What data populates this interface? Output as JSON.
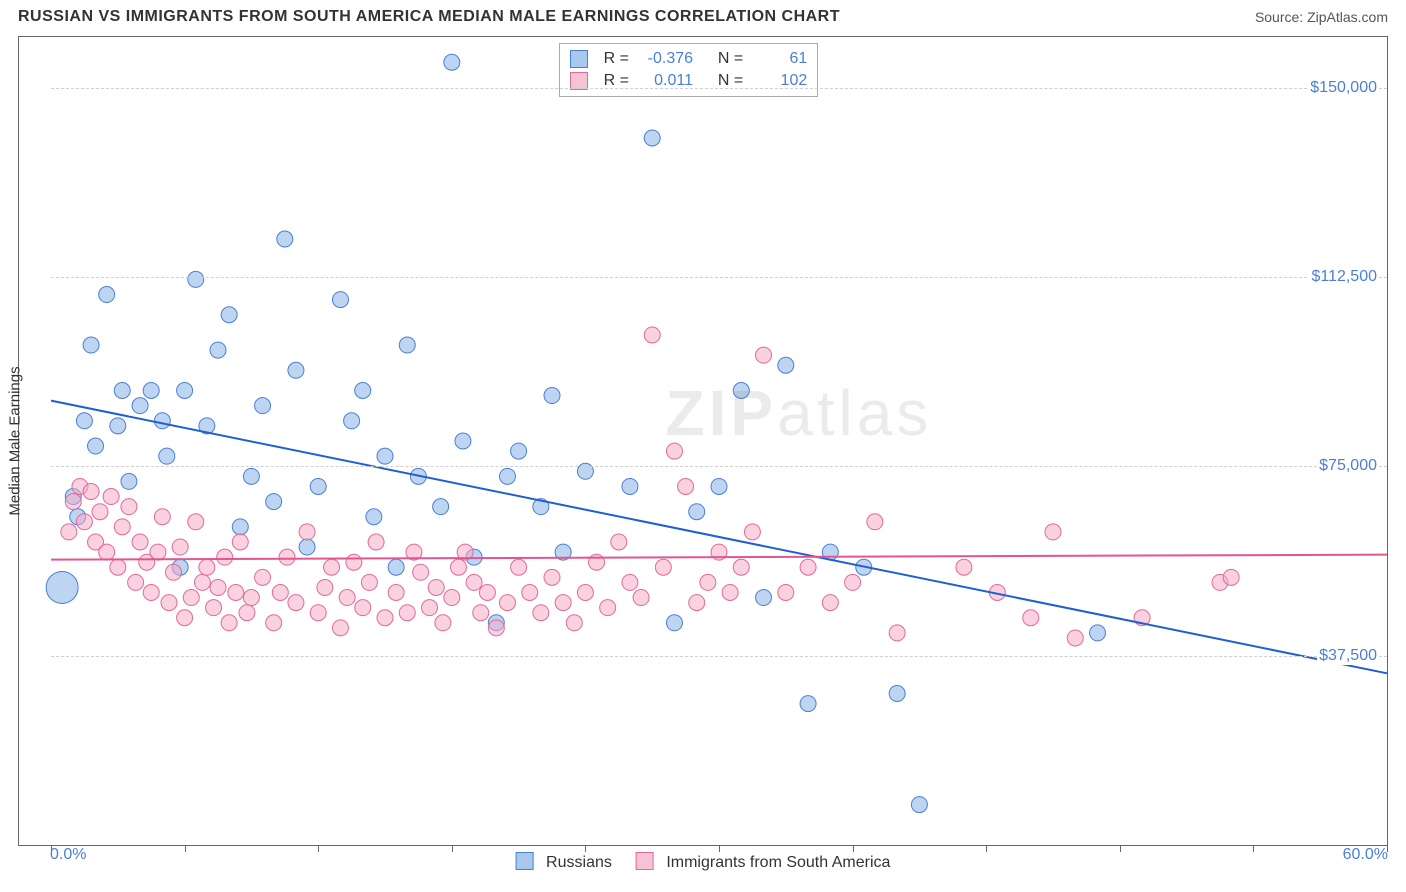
{
  "title": "RUSSIAN VS IMMIGRANTS FROM SOUTH AMERICA MEDIAN MALE EARNINGS CORRELATION CHART",
  "source": "Source: ZipAtlas.com",
  "ylabel": "Median Male Earnings",
  "watermark": {
    "bold": "ZIP",
    "rest": "atlas"
  },
  "chart": {
    "type": "scatter",
    "xlim": [
      0,
      60
    ],
    "ylim": [
      0,
      160000
    ],
    "x_axis_label_min": "0.0%",
    "x_axis_label_max": "60.0%",
    "y_ticks": [
      37500,
      75000,
      112500,
      150000
    ],
    "y_tick_labels": [
      "$37,500",
      "$75,000",
      "$112,500",
      "$150,000"
    ],
    "x_ticks": [
      0,
      6,
      12,
      18,
      24,
      30,
      36,
      42,
      48,
      54,
      60
    ],
    "grid_color": "#cfcfcf",
    "background_color": "#ffffff",
    "marker_radius": 8,
    "marker_radius_big": 16,
    "series": [
      {
        "name": "Russians",
        "label": "Russians",
        "fill": "rgba(134,178,230,0.55)",
        "stroke": "#4a7fd8",
        "swatch_fill": "#a9c8ee",
        "swatch_border": "#4a7fd8",
        "trend": {
          "x1": 0,
          "y1": 88000,
          "x2": 60,
          "y2": 34000,
          "color": "#1f5fd0",
          "width": 2
        },
        "R": "-0.376",
        "N": "61",
        "points": [
          [
            0.5,
            51000,
            2.0
          ],
          [
            1.0,
            69000
          ],
          [
            1.2,
            65000
          ],
          [
            1.5,
            84000
          ],
          [
            1.8,
            99000
          ],
          [
            2.0,
            79000
          ],
          [
            2.5,
            109000
          ],
          [
            3.0,
            83000
          ],
          [
            3.2,
            90000
          ],
          [
            3.5,
            72000
          ],
          [
            4.0,
            87000
          ],
          [
            4.5,
            90000
          ],
          [
            5.0,
            84000
          ],
          [
            5.2,
            77000
          ],
          [
            5.8,
            55000
          ],
          [
            6.0,
            90000
          ],
          [
            6.5,
            112000
          ],
          [
            7.0,
            83000
          ],
          [
            7.5,
            98000
          ],
          [
            8.0,
            105000
          ],
          [
            8.5,
            63000
          ],
          [
            9.0,
            73000
          ],
          [
            9.5,
            87000
          ],
          [
            10.0,
            68000
          ],
          [
            10.5,
            120000
          ],
          [
            11.0,
            94000
          ],
          [
            11.5,
            59000
          ],
          [
            12.0,
            71000
          ],
          [
            13.0,
            108000
          ],
          [
            13.5,
            84000
          ],
          [
            14.0,
            90000
          ],
          [
            14.5,
            65000
          ],
          [
            15.0,
            77000
          ],
          [
            15.5,
            55000
          ],
          [
            16.0,
            99000
          ],
          [
            16.5,
            73000
          ],
          [
            17.5,
            67000
          ],
          [
            18.0,
            155000
          ],
          [
            18.5,
            80000
          ],
          [
            19.0,
            57000
          ],
          [
            20.0,
            44000
          ],
          [
            20.5,
            73000
          ],
          [
            21.0,
            78000
          ],
          [
            22.0,
            67000
          ],
          [
            22.5,
            89000
          ],
          [
            23.0,
            58000
          ],
          [
            24.0,
            74000
          ],
          [
            26.0,
            71000
          ],
          [
            27.0,
            140000
          ],
          [
            28.0,
            44000
          ],
          [
            29.0,
            66000
          ],
          [
            30.0,
            71000
          ],
          [
            31.0,
            90000
          ],
          [
            32.0,
            49000
          ],
          [
            33.0,
            95000
          ],
          [
            34.0,
            28000
          ],
          [
            35.0,
            58000
          ],
          [
            36.5,
            55000
          ],
          [
            38.0,
            30000
          ],
          [
            39.0,
            8000
          ],
          [
            47.0,
            42000
          ]
        ]
      },
      {
        "name": "Immigrants from South America",
        "label": "Immigrants from South America",
        "fill": "rgba(244,172,196,0.55)",
        "stroke": "#e26a9a",
        "swatch_fill": "#f6c3d6",
        "swatch_border": "#e26a9a",
        "trend": {
          "x1": 0,
          "y1": 56500,
          "x2": 60,
          "y2": 57500,
          "color": "#e25590",
          "width": 2
        },
        "R": "0.011",
        "N": "102",
        "points": [
          [
            0.8,
            62000
          ],
          [
            1.0,
            68000
          ],
          [
            1.3,
            71000
          ],
          [
            1.5,
            64000
          ],
          [
            1.8,
            70000
          ],
          [
            2.0,
            60000
          ],
          [
            2.2,
            66000
          ],
          [
            2.5,
            58000
          ],
          [
            2.7,
            69000
          ],
          [
            3.0,
            55000
          ],
          [
            3.2,
            63000
          ],
          [
            3.5,
            67000
          ],
          [
            3.8,
            52000
          ],
          [
            4.0,
            60000
          ],
          [
            4.3,
            56000
          ],
          [
            4.5,
            50000
          ],
          [
            4.8,
            58000
          ],
          [
            5.0,
            65000
          ],
          [
            5.3,
            48000
          ],
          [
            5.5,
            54000
          ],
          [
            5.8,
            59000
          ],
          [
            6.0,
            45000
          ],
          [
            6.3,
            49000
          ],
          [
            6.5,
            64000
          ],
          [
            6.8,
            52000
          ],
          [
            7.0,
            55000
          ],
          [
            7.3,
            47000
          ],
          [
            7.5,
            51000
          ],
          [
            7.8,
            57000
          ],
          [
            8.0,
            44000
          ],
          [
            8.3,
            50000
          ],
          [
            8.5,
            60000
          ],
          [
            8.8,
            46000
          ],
          [
            9.0,
            49000
          ],
          [
            9.5,
            53000
          ],
          [
            10.0,
            44000
          ],
          [
            10.3,
            50000
          ],
          [
            10.6,
            57000
          ],
          [
            11.0,
            48000
          ],
          [
            11.5,
            62000
          ],
          [
            12.0,
            46000
          ],
          [
            12.3,
            51000
          ],
          [
            12.6,
            55000
          ],
          [
            13.0,
            43000
          ],
          [
            13.3,
            49000
          ],
          [
            13.6,
            56000
          ],
          [
            14.0,
            47000
          ],
          [
            14.3,
            52000
          ],
          [
            14.6,
            60000
          ],
          [
            15.0,
            45000
          ],
          [
            15.5,
            50000
          ],
          [
            16.0,
            46000
          ],
          [
            16.3,
            58000
          ],
          [
            16.6,
            54000
          ],
          [
            17.0,
            47000
          ],
          [
            17.3,
            51000
          ],
          [
            17.6,
            44000
          ],
          [
            18.0,
            49000
          ],
          [
            18.3,
            55000
          ],
          [
            18.6,
            58000
          ],
          [
            19.0,
            52000
          ],
          [
            19.3,
            46000
          ],
          [
            19.6,
            50000
          ],
          [
            20.0,
            43000
          ],
          [
            20.5,
            48000
          ],
          [
            21.0,
            55000
          ],
          [
            21.5,
            50000
          ],
          [
            22.0,
            46000
          ],
          [
            22.5,
            53000
          ],
          [
            23.0,
            48000
          ],
          [
            23.5,
            44000
          ],
          [
            24.0,
            50000
          ],
          [
            24.5,
            56000
          ],
          [
            25.0,
            47000
          ],
          [
            25.5,
            60000
          ],
          [
            26.0,
            52000
          ],
          [
            26.5,
            49000
          ],
          [
            27.0,
            101000
          ],
          [
            27.5,
            55000
          ],
          [
            28.0,
            78000
          ],
          [
            28.5,
            71000
          ],
          [
            29.0,
            48000
          ],
          [
            29.5,
            52000
          ],
          [
            30.0,
            58000
          ],
          [
            30.5,
            50000
          ],
          [
            31.0,
            55000
          ],
          [
            31.5,
            62000
          ],
          [
            32.0,
            97000
          ],
          [
            33.0,
            50000
          ],
          [
            34.0,
            55000
          ],
          [
            35.0,
            48000
          ],
          [
            36.0,
            52000
          ],
          [
            37.0,
            64000
          ],
          [
            38.0,
            42000
          ],
          [
            41.0,
            55000
          ],
          [
            42.5,
            50000
          ],
          [
            44.0,
            45000
          ],
          [
            45.0,
            62000
          ],
          [
            46.0,
            41000
          ],
          [
            49.0,
            45000
          ],
          [
            52.5,
            52000
          ],
          [
            53.0,
            53000
          ]
        ]
      }
    ]
  },
  "legend_box": {
    "R_label": "R =",
    "N_label": "N ="
  }
}
